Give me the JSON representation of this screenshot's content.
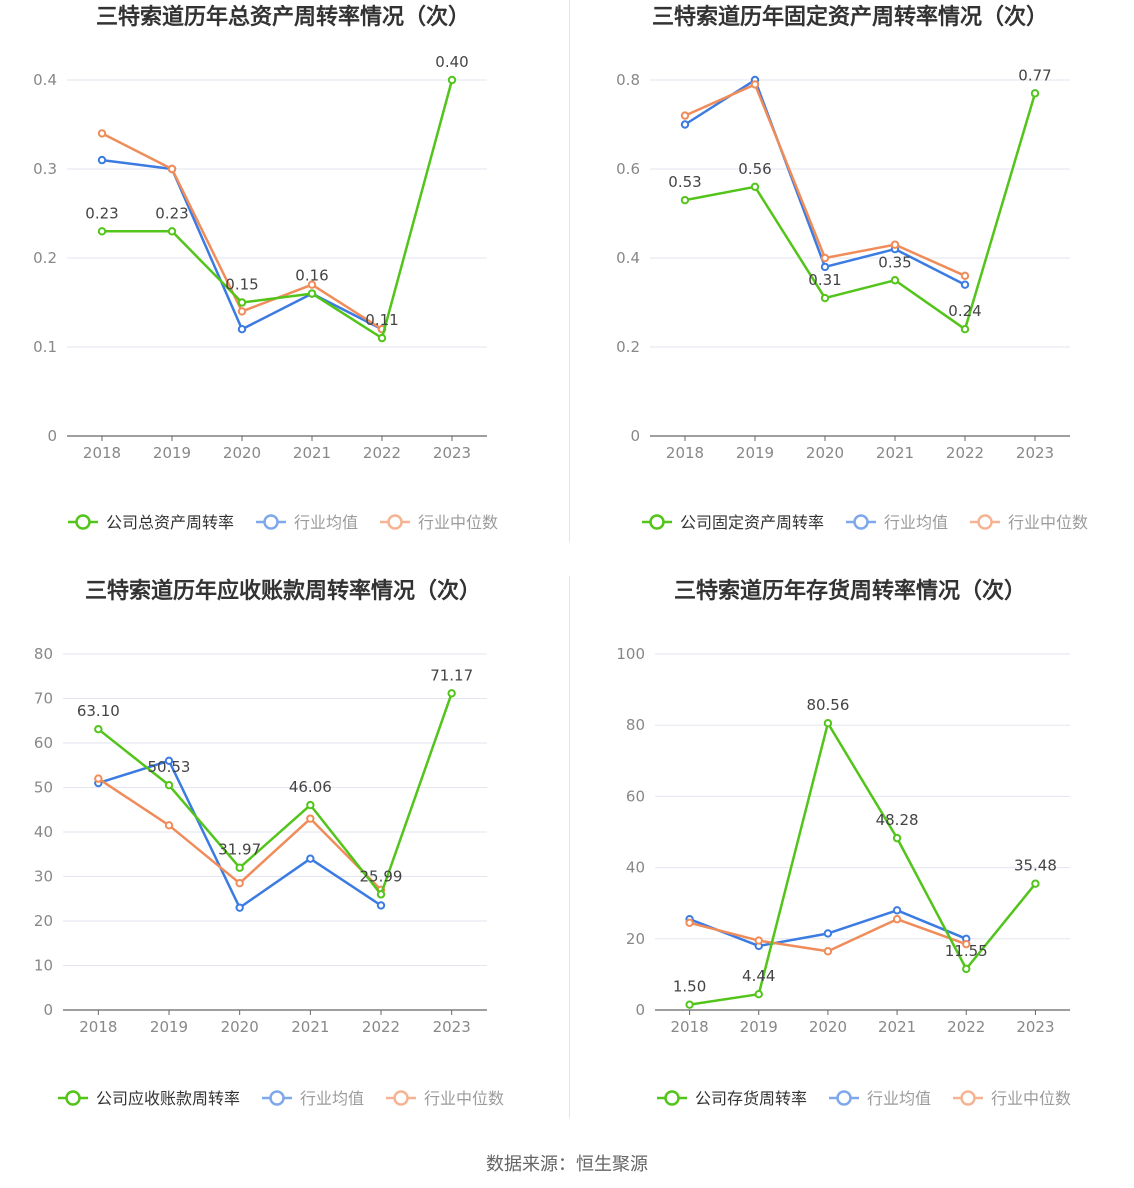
{
  "colors": {
    "company": "#52c41a",
    "avg": "#3b7be2",
    "median": "#f08c5a",
    "grid": "#e3e6ef",
    "axis": "#666666",
    "tick": "#888888",
    "title": "#333333"
  },
  "source": "数据来源：恒生聚源",
  "chart_data": [
    {
      "type": "line",
      "title": "三特索道历年总资产周转率情况（次）",
      "categories": [
        "2018",
        "2019",
        "2020",
        "2021",
        "2022",
        "2023"
      ],
      "ylim": [
        0,
        0.4
      ],
      "yticks": [
        0,
        0.1,
        0.2,
        0.3,
        0.4
      ],
      "ytick_labels": [
        "0",
        "0.1",
        "0.2",
        "0.3",
        "0.4"
      ],
      "legend_position": "bottom",
      "series": [
        {
          "name": "公司总资产周转率",
          "role": "company",
          "values": [
            0.23,
            0.23,
            0.15,
            0.16,
            0.11,
            0.4
          ],
          "labels": [
            "0.23",
            "0.23",
            "0.15",
            "0.16",
            "0.11",
            "0.40"
          ]
        },
        {
          "name": "行业均值",
          "role": "avg",
          "values": [
            0.31,
            0.3,
            0.12,
            0.16,
            0.12,
            null
          ]
        },
        {
          "name": "行业中位数",
          "role": "median",
          "values": [
            0.34,
            0.3,
            0.14,
            0.17,
            0.12,
            null
          ]
        }
      ]
    },
    {
      "type": "line",
      "title": "三特索道历年固定资产周转率情况（次）",
      "categories": [
        "2018",
        "2019",
        "2020",
        "2021",
        "2022",
        "2023"
      ],
      "ylim": [
        0,
        0.8
      ],
      "yticks": [
        0,
        0.2,
        0.4,
        0.6,
        0.8
      ],
      "ytick_labels": [
        "0",
        "0.2",
        "0.4",
        "0.6",
        "0.8"
      ],
      "legend_position": "bottom",
      "series": [
        {
          "name": "公司固定资产周转率",
          "role": "company",
          "values": [
            0.53,
            0.56,
            0.31,
            0.35,
            0.24,
            0.77
          ],
          "labels": [
            "0.53",
            "0.56",
            "0.31",
            "0.35",
            "0.24",
            "0.77"
          ]
        },
        {
          "name": "行业均值",
          "role": "avg",
          "values": [
            0.7,
            0.8,
            0.38,
            0.42,
            0.34,
            null
          ]
        },
        {
          "name": "行业中位数",
          "role": "median",
          "values": [
            0.72,
            0.79,
            0.4,
            0.43,
            0.36,
            null
          ]
        }
      ]
    },
    {
      "type": "line",
      "title": "三特索道历年应收账款周转率情况（次）",
      "categories": [
        "2018",
        "2019",
        "2020",
        "2021",
        "2022",
        "2023"
      ],
      "ylim": [
        0,
        80
      ],
      "yticks": [
        0,
        10,
        20,
        30,
        40,
        50,
        60,
        70,
        80
      ],
      "ytick_labels": [
        "0",
        "10",
        "20",
        "30",
        "40",
        "50",
        "60",
        "70",
        "80"
      ],
      "legend_position": "bottom",
      "series": [
        {
          "name": "公司应收账款周转率",
          "role": "company",
          "values": [
            63.1,
            50.53,
            31.97,
            46.06,
            25.99,
            71.17
          ],
          "labels": [
            "63.10",
            "50.53",
            "31.97",
            "46.06",
            "25.99",
            "71.17"
          ]
        },
        {
          "name": "行业均值",
          "role": "avg",
          "values": [
            51.0,
            56.0,
            23.0,
            34.0,
            23.5,
            null
          ]
        },
        {
          "name": "行业中位数",
          "role": "median",
          "values": [
            52.0,
            41.5,
            28.5,
            43.0,
            27.0,
            null
          ]
        }
      ]
    },
    {
      "type": "line",
      "title": "三特索道历年存货周转率情况（次）",
      "categories": [
        "2018",
        "2019",
        "2020",
        "2021",
        "2022",
        "2023"
      ],
      "ylim": [
        0,
        100
      ],
      "yticks": [
        0,
        20,
        40,
        60,
        80,
        100
      ],
      "ytick_labels": [
        "0",
        "20",
        "40",
        "60",
        "80",
        "100"
      ],
      "legend_position": "bottom",
      "series": [
        {
          "name": "公司存货周转率",
          "role": "company",
          "values": [
            1.5,
            4.44,
            80.56,
            48.28,
            11.55,
            35.48
          ],
          "labels": [
            "1.50",
            "4.44",
            "80.56",
            "48.28",
            "11.55",
            "35.48"
          ]
        },
        {
          "name": "行业均值",
          "role": "avg",
          "values": [
            25.5,
            18.0,
            21.5,
            28.0,
            20.0,
            null
          ]
        },
        {
          "name": "行业中位数",
          "role": "median",
          "values": [
            24.5,
            19.5,
            16.5,
            25.5,
            18.5,
            null
          ]
        }
      ]
    }
  ]
}
